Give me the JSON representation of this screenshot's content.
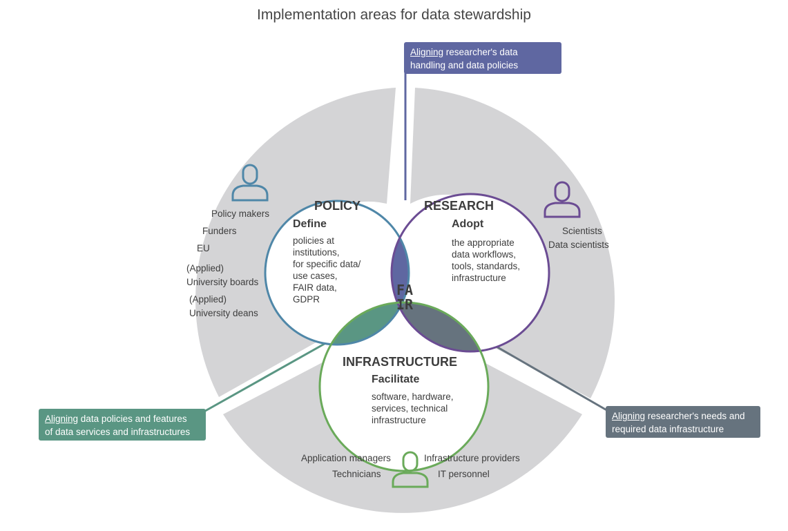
{
  "title": "Implementation areas for data stewardship",
  "center_label": [
    "FA",
    "IR"
  ],
  "policy": {
    "title": "POLICY",
    "verb": "Define",
    "description": [
      "policies at",
      "institutions,",
      "for specific data/",
      "use cases,",
      "FAIR data,",
      "GDPR"
    ],
    "actors": [
      "Policy makers",
      "Funders",
      "EU",
      "(Applied)",
      "University boards",
      "(Applied)",
      "University deans"
    ],
    "person_icon": "person-icon"
  },
  "research": {
    "title": "RESEARCH",
    "verb": "Adopt",
    "description": [
      "the appropriate",
      "data workflows,",
      "tools, standards,",
      "infrastructure"
    ],
    "actors": [
      "Scientists",
      "Data scientists"
    ],
    "person_icon": "person-icon"
  },
  "infrastructure": {
    "title": "INFRASTRUCTURE",
    "verb": "Facilitate",
    "description": [
      "software, hardware,",
      "services, technical",
      "infrastructure"
    ],
    "actors_left": [
      "Application managers",
      "Technicians"
    ],
    "actors_right": [
      "Infrastructure providers",
      "IT personnel"
    ],
    "person_icon": "person-icon"
  },
  "callouts": {
    "research_policy": {
      "underlined": "Aligning",
      "rest_line1": " researcher's data",
      "line2": "handling and data policies"
    },
    "policy_infrastructure": {
      "underlined": "Aligning",
      "rest_line1": " data policies and features",
      "line2": "of data services and infrastructures"
    },
    "research_infrastructure": {
      "underlined": "Aligning",
      "rest_line1": " researcher's needs and",
      "line2": "required data infrastructure"
    }
  },
  "colors": {
    "policy": "#4f87a8",
    "research": "#6b4c93",
    "infrastructure": "#6aaa5a",
    "overlap_policy_research": "#5f67a1",
    "overlap_policy_infrastructure": "#5a9683",
    "overlap_research_infrastructure": "#66737e",
    "sector": "#d4d4d6",
    "callout_research_policy": "#5f67a1",
    "callout_policy_infrastructure": "#5a9683",
    "callout_research_infrastructure": "#66737e"
  }
}
